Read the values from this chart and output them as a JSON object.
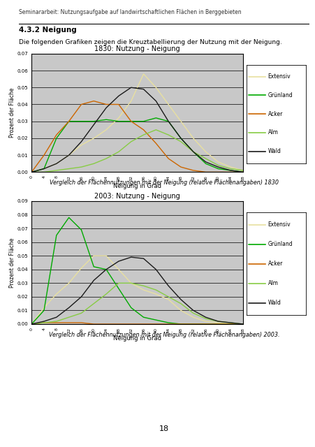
{
  "page_title": "Seminararbeit: Nutzungsaufgabe auf landwirtschaftlichen Flächen in Berggebieten",
  "section_title": "4.3.2 Neigung",
  "section_text": "Die folgenden Grafiken zeigen die Kreuztabellierung der Nutzung mit der Neigung.",
  "caption1": "Vergleich der Flächennutzungen mit der Neigung (relative Flächenangaben) 1830",
  "caption2": "Vergleich der Flächennutzungen mit der Neigung (relative Flächenangaben) 2003.",
  "page_number": "18",
  "chart1_title": "1830: Nutzung - Neigung",
  "chart2_title": "2003: Nutzung - Neigung",
  "xlabel": "Neigung in Grad",
  "ylabel": "Prozent der Fläche",
  "ylim1": [
    0,
    0.07
  ],
  "ylim2": [
    0,
    0.09
  ],
  "yticks1": [
    0.0,
    0.01,
    0.02,
    0.03,
    0.04,
    0.05,
    0.06,
    0.07
  ],
  "yticks2": [
    0.0,
    0.01,
    0.02,
    0.03,
    0.04,
    0.05,
    0.06,
    0.07,
    0.08,
    0.09
  ],
  "xtick_vals": [
    0,
    4,
    8,
    12,
    16,
    20,
    24,
    28,
    32,
    36,
    40,
    44,
    48,
    52,
    56,
    60,
    64,
    68
  ],
  "legend_labels": [
    "Extensiv",
    "Grünland",
    "Acker",
    "Alm",
    "Wald"
  ],
  "colors": {
    "Extensiv": "#e8e0a0",
    "Grünland": "#00aa00",
    "Acker": "#cc6600",
    "Alm": "#88cc44",
    "Wald": "#1a1a1a"
  },
  "bg_color": "#c8c8c8",
  "chart1": {
    "Extensiv": [
      0.0,
      0.002,
      0.005,
      0.01,
      0.016,
      0.02,
      0.025,
      0.032,
      0.042,
      0.058,
      0.05,
      0.04,
      0.03,
      0.02,
      0.012,
      0.006,
      0.003,
      0.001
    ],
    "Grünland": [
      0.0,
      0.002,
      0.02,
      0.03,
      0.03,
      0.03,
      0.031,
      0.03,
      0.03,
      0.03,
      0.032,
      0.03,
      0.02,
      0.012,
      0.005,
      0.002,
      0.001,
      0.0
    ],
    "Acker": [
      0.0,
      0.01,
      0.022,
      0.03,
      0.04,
      0.042,
      0.04,
      0.04,
      0.03,
      0.025,
      0.017,
      0.008,
      0.003,
      0.001,
      0.0,
      0.0,
      0.0,
      0.0
    ],
    "Alm": [
      0.0,
      0.0,
      0.001,
      0.002,
      0.003,
      0.005,
      0.008,
      0.012,
      0.018,
      0.022,
      0.025,
      0.022,
      0.018,
      0.012,
      0.008,
      0.004,
      0.002,
      0.001
    ],
    "Wald": [
      0.0,
      0.002,
      0.005,
      0.01,
      0.018,
      0.028,
      0.038,
      0.045,
      0.05,
      0.049,
      0.042,
      0.03,
      0.02,
      0.012,
      0.006,
      0.003,
      0.001,
      0.0
    ]
  },
  "chart2": {
    "Extensiv": [
      0.0,
      0.012,
      0.022,
      0.03,
      0.041,
      0.05,
      0.05,
      0.04,
      0.03,
      0.025,
      0.022,
      0.018,
      0.01,
      0.005,
      0.002,
      0.001,
      0.0,
      0.0
    ],
    "Grünland": [
      0.0,
      0.01,
      0.065,
      0.078,
      0.069,
      0.042,
      0.04,
      0.026,
      0.012,
      0.005,
      0.003,
      0.001,
      0.0,
      0.0,
      0.0,
      0.0,
      0.0,
      0.0
    ],
    "Acker": [
      0.0,
      0.001,
      0.001,
      0.001,
      0.001,
      0.0,
      0.0,
      0.0,
      0.0,
      0.0,
      0.0,
      0.0,
      0.0,
      0.0,
      0.0,
      0.0,
      0.0,
      0.0
    ],
    "Alm": [
      0.0,
      0.001,
      0.002,
      0.005,
      0.008,
      0.015,
      0.022,
      0.03,
      0.03,
      0.028,
      0.025,
      0.02,
      0.015,
      0.008,
      0.004,
      0.002,
      0.001,
      0.0
    ],
    "Wald": [
      0.0,
      0.002,
      0.005,
      0.012,
      0.02,
      0.032,
      0.04,
      0.046,
      0.049,
      0.048,
      0.04,
      0.028,
      0.018,
      0.01,
      0.005,
      0.002,
      0.001,
      0.0
    ]
  }
}
